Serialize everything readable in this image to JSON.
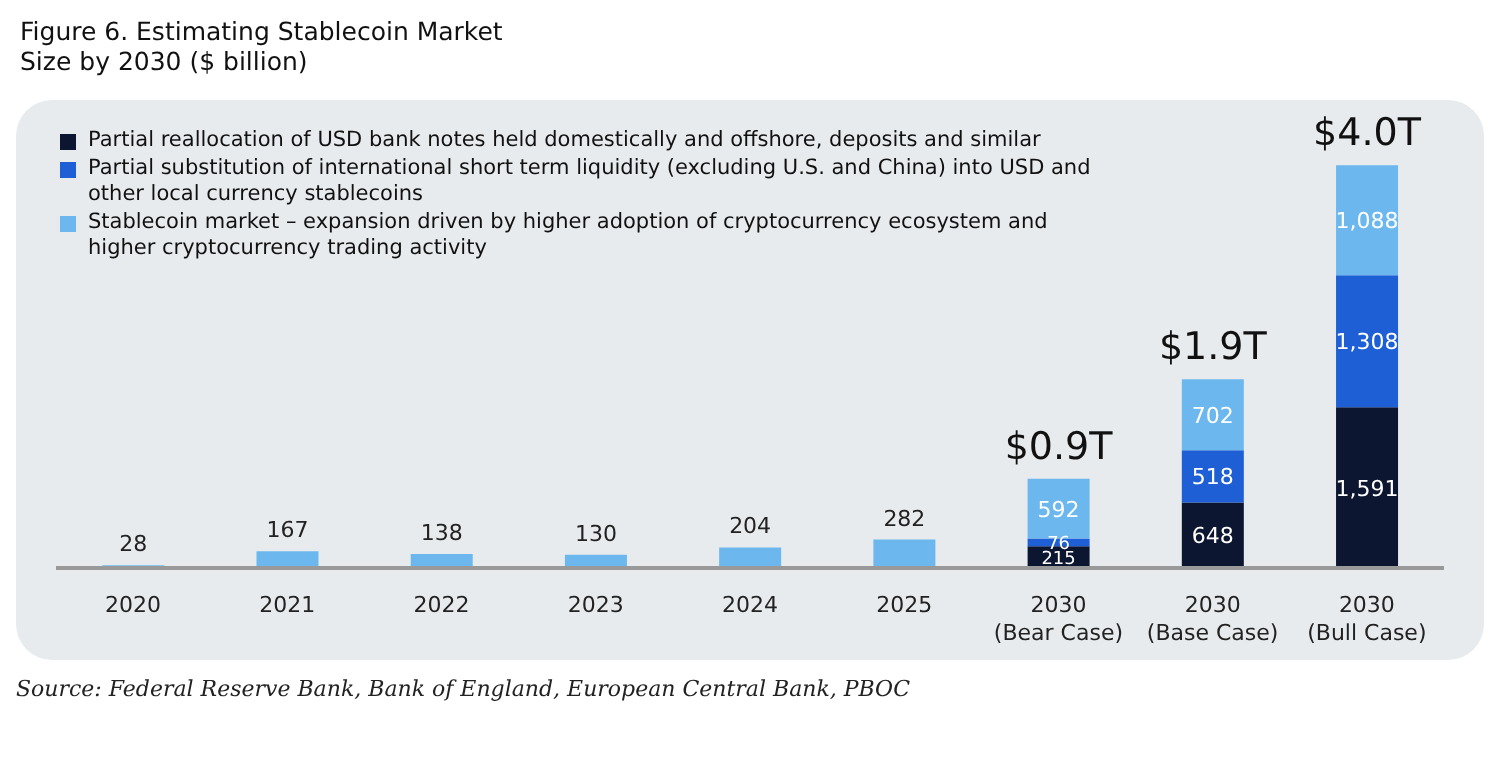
{
  "chart_data": {
    "type": "bar",
    "title": "Figure 6. Estimating Stablecoin Market Size by 2030 ($ billion)",
    "categories": [
      "2020",
      "2021",
      "2022",
      "2023",
      "2024",
      "2025",
      "2030 (Bear Case)",
      "2030 (Base Case)",
      "2030 (Bull Case)"
    ],
    "stacked": true,
    "legend": "top left",
    "grid": false,
    "series": [
      {
        "name": "Partial reallocation of USD bank notes held domestically and offshore, deposits and similar",
        "color": "#0c1631",
        "values": [
          null,
          null,
          null,
          null,
          null,
          null,
          215,
          648,
          1591
        ],
        "value_labels": [
          null,
          null,
          null,
          null,
          null,
          null,
          "215",
          "648",
          "1,591"
        ]
      },
      {
        "name": "Partial substitution of international short term liquidity (excluding U.S. and China) into USD and other local currency stablecoins",
        "color": "#1f5fd6",
        "values": [
          null,
          null,
          null,
          null,
          null,
          null,
          76,
          518,
          1308
        ],
        "value_labels": [
          null,
          null,
          null,
          null,
          null,
          null,
          "76",
          "518",
          "1,308"
        ]
      },
      {
        "name": "Stablecoin market – expansion driven by higher adoption of cryptocurrency ecosystem and higher cryptocurrency trading activity",
        "color": "#6cb8ee",
        "values": [
          28,
          167,
          138,
          130,
          204,
          282,
          592,
          702,
          1088
        ],
        "value_labels": [
          "28",
          "167",
          "138",
          "130",
          "204",
          "282",
          "592",
          "702",
          "1,088"
        ]
      }
    ],
    "totals": [
      null,
      null,
      null,
      null,
      null,
      null,
      "$0.9T",
      "$1.9T",
      "$4.0T"
    ],
    "annotations": [
      "Source: Federal Reserve Bank, Bank of England, European Central Bank, PBOC"
    ]
  }
}
